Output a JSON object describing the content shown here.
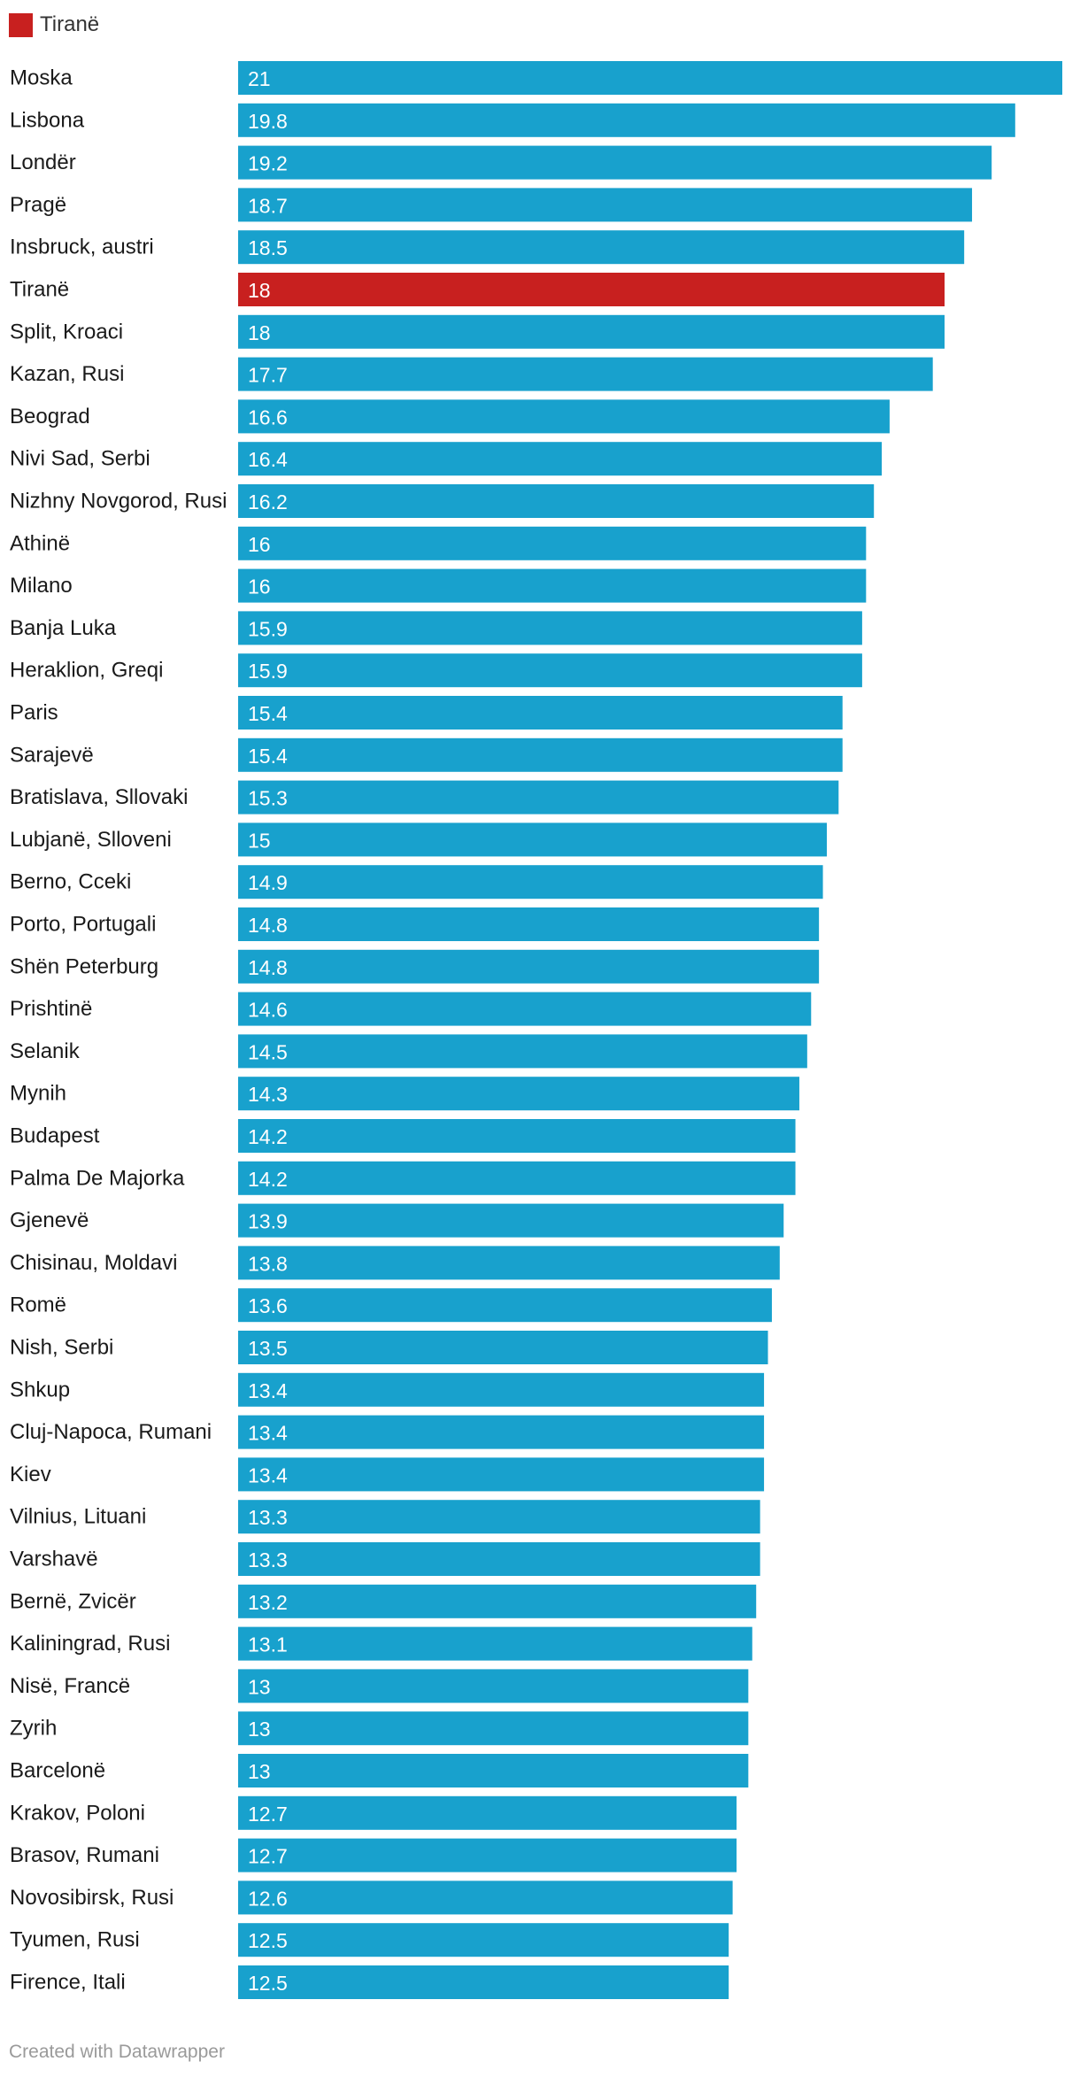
{
  "legend": {
    "label": "Tiranë",
    "color": "#c8201f"
  },
  "colors": {
    "default_bar": "#18a1cd",
    "highlight_bar": "#c8201f"
  },
  "footer": {
    "credit": "Created with Datawrapper"
  },
  "chart_data": {
    "type": "bar",
    "orientation": "horizontal",
    "title": "",
    "xlabel": "",
    "ylabel": "",
    "xlim": [
      0,
      21
    ],
    "highlight": "Tiranë",
    "categories": [
      "Moska",
      "Lisbona",
      "Londër",
      "Pragë",
      "Insbruck, austri",
      "Tiranë",
      "Split, Kroaci",
      "Kazan, Rusi",
      "Beograd",
      "Nivi Sad, Serbi",
      "Nizhny Novgorod, Rusi",
      "Athinë",
      "Milano",
      "Banja Luka",
      "Heraklion, Greqi",
      "Paris",
      "Sarajevë",
      "Bratislava, Sllovaki",
      "Lubjanë, Slloveni",
      "Berno, Cceki",
      "Porto, Portugali",
      "Shën Peterburg",
      "Prishtinë",
      "Selanik",
      "Mynih",
      "Budapest",
      "Palma De Majorka",
      "Gjenevë",
      "Chisinau, Moldavi",
      "Romë",
      "Nish, Serbi",
      "Shkup",
      "Cluj-Napoca, Rumani",
      "Kiev",
      "Vilnius, Lituani",
      "Varshavë",
      "Bernë, Zvicër",
      "Kaliningrad, Rusi",
      "Nisë, Francë",
      "Zyrih",
      "Barcelonë",
      "Krakov, Poloni",
      "Brasov, Rumani",
      "Novosibirsk, Rusi",
      "Tyumen, Rusi",
      "Firence, Itali"
    ],
    "values": [
      21,
      19.8,
      19.2,
      18.7,
      18.5,
      18,
      18,
      17.7,
      16.6,
      16.4,
      16.2,
      16,
      16,
      15.9,
      15.9,
      15.4,
      15.4,
      15.3,
      15,
      14.9,
      14.8,
      14.8,
      14.6,
      14.5,
      14.3,
      14.2,
      14.2,
      13.9,
      13.8,
      13.6,
      13.5,
      13.4,
      13.4,
      13.4,
      13.3,
      13.3,
      13.2,
      13.1,
      13,
      13,
      13,
      12.7,
      12.7,
      12.6,
      12.5,
      12.5
    ]
  }
}
